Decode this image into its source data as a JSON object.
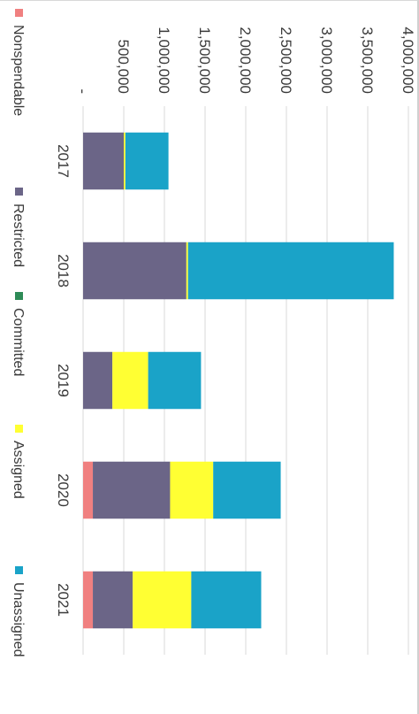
{
  "chart_data": {
    "type": "bar",
    "stacked": true,
    "orientation": "vertical",
    "rotation": "page rotated 90 degrees clockwise",
    "categories": [
      "2017",
      "2018",
      "2019",
      "2020",
      "2021"
    ],
    "series": [
      {
        "name": "Nonspendable",
        "color": "#f08080",
        "values": [
          0,
          0,
          0,
          120000,
          120000
        ]
      },
      {
        "name": "Restricted",
        "color": "#6b6587",
        "values": [
          500000,
          1270000,
          360000,
          950000,
          490000
        ]
      },
      {
        "name": "Committed",
        "color": "#2e8b57",
        "values": [
          0,
          0,
          0,
          0,
          0
        ]
      },
      {
        "name": "Assigned",
        "color": "#ffff33",
        "values": [
          20000,
          20000,
          440000,
          530000,
          720000
        ]
      },
      {
        "name": "Unassigned",
        "color": "#1aa3c8",
        "values": [
          530000,
          2530000,
          650000,
          830000,
          860000
        ]
      }
    ],
    "ylim": [
      0,
      4000000
    ],
    "yticks": [
      "-",
      "500,000",
      "1,000,000",
      "1,500,000",
      "2,000,000",
      "2,500,000",
      "3,000,000",
      "3,500,000",
      "4,000,000"
    ],
    "grid": true,
    "legend_position": "bottom"
  }
}
